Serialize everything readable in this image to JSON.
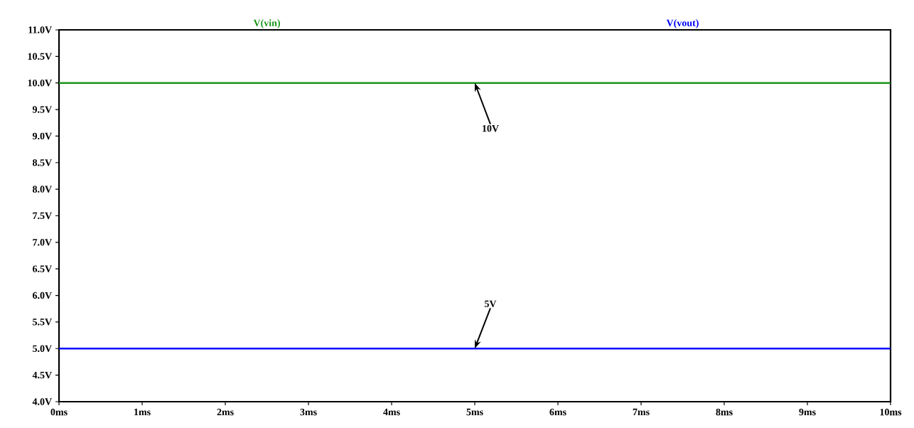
{
  "chart_data": {
    "type": "line",
    "legend": "top",
    "marker": "none",
    "line_style": "solid",
    "grid": false,
    "xlim": [
      0,
      10
    ],
    "ylim": [
      4,
      11
    ],
    "x": [
      0,
      10
    ],
    "xticks": [
      {
        "value": 0,
        "label": "0ms"
      },
      {
        "value": 1,
        "label": "1ms"
      },
      {
        "value": 2,
        "label": "2ms"
      },
      {
        "value": 3,
        "label": "3ms"
      },
      {
        "value": 4,
        "label": "4ms"
      },
      {
        "value": 5,
        "label": "5ms"
      },
      {
        "value": 6,
        "label": "6ms"
      },
      {
        "value": 7,
        "label": "7ms"
      },
      {
        "value": 8,
        "label": "8ms"
      },
      {
        "value": 9,
        "label": "9ms"
      },
      {
        "value": 10,
        "label": "10ms"
      }
    ],
    "yticks": [
      {
        "value": 4,
        "label": "4.0V"
      },
      {
        "value": 4.5,
        "label": "4.5V"
      },
      {
        "value": 5,
        "label": "5.0V"
      },
      {
        "value": 5.5,
        "label": "5.5V"
      },
      {
        "value": 6,
        "label": "6.0V"
      },
      {
        "value": 6.5,
        "label": "6.5V"
      },
      {
        "value": 7,
        "label": "7.0V"
      },
      {
        "value": 7.5,
        "label": "7.5V"
      },
      {
        "value": 8,
        "label": "8.0V"
      },
      {
        "value": 8.5,
        "label": "8.5V"
      },
      {
        "value": 9,
        "label": "9.0V"
      },
      {
        "value": 9.5,
        "label": "9.5V"
      },
      {
        "value": 10,
        "label": "10.0V"
      },
      {
        "value": 10.5,
        "label": "10.5V"
      },
      {
        "value": 11,
        "label": "11.0V"
      }
    ],
    "series": [
      {
        "name": "V(vin)",
        "color": "#1a961a",
        "values": [
          10,
          10
        ]
      },
      {
        "name": "V(vout)",
        "color": "#0000ff",
        "values": [
          5,
          5
        ]
      }
    ],
    "annotations": [
      {
        "text": "10V",
        "x": 5,
        "y": 10
      },
      {
        "text": "5V",
        "x": 5,
        "y": 5
      }
    ]
  }
}
